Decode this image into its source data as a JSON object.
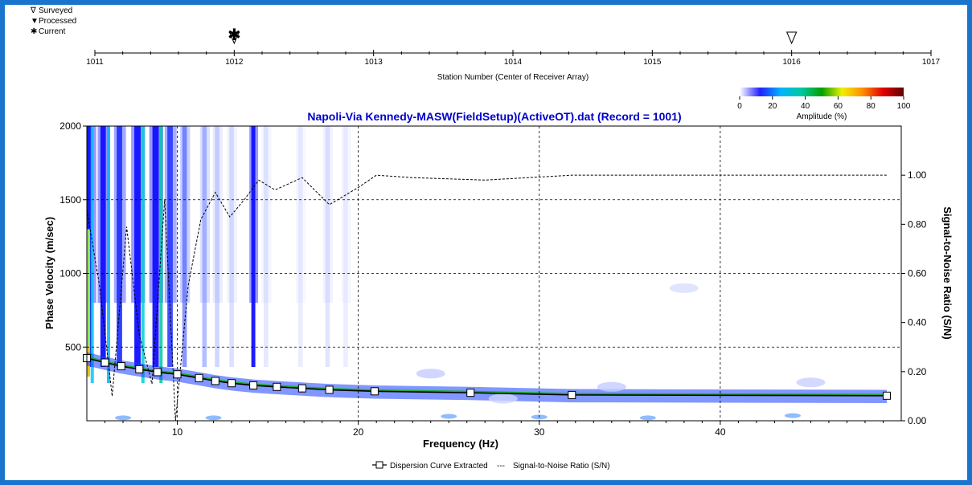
{
  "status_legend": {
    "items": [
      {
        "symbol": "∇",
        "label": "Surveyed"
      },
      {
        "symbol": "▼",
        "label": "Processed"
      },
      {
        "symbol": "✱",
        "label": "Current"
      }
    ]
  },
  "station_axis": {
    "label": "Station Number (Center of Receiver Array)",
    "ticks": [
      "1011",
      "1012",
      "1013",
      "1014",
      "1015",
      "1016",
      "1017"
    ],
    "range": [
      1011,
      1017
    ],
    "surveyed_stations": [
      1012,
      1016
    ],
    "current_station": 1012
  },
  "colorbar": {
    "label": "Amplitude (%)",
    "ticks": [
      "0",
      "20",
      "40",
      "60",
      "80",
      "100"
    ],
    "colors": [
      "#ffffff",
      "#2020ff",
      "#00b4ff",
      "#00c8a0",
      "#00a000",
      "#f0f000",
      "#ff8c00",
      "#e00000",
      "#600000"
    ]
  },
  "chart_data": {
    "type": "line",
    "title": "Napoli-Via Kennedy-MASW(FieldSetup)(ActiveOT).dat (Record = 1001)",
    "xlabel": "Frequency (Hz)",
    "ylabel": "Phase Velocity (m/sec)",
    "y2label": "Signal-to-Noise Ratio (S/N)",
    "xlim": [
      5,
      50
    ],
    "ylim": [
      0,
      2000
    ],
    "y2lim": [
      0,
      1.2
    ],
    "x_ticks": [
      "10",
      "20",
      "30",
      "40"
    ],
    "y_ticks": [
      "500",
      "1000",
      "1500",
      "2000"
    ],
    "y2_ticks": [
      "0.00",
      "0.20",
      "0.40",
      "0.60",
      "0.80",
      "1.00"
    ],
    "grid": true,
    "legend_position": "bottom-center",
    "legend": [
      "Dispersion Curve Extracted",
      "Signal-to-Noise Ratio (S/N)"
    ],
    "series": [
      {
        "name": "Dispersion Curve Extracted",
        "axis": "left",
        "x": [
          5.0,
          6.0,
          6.9,
          7.9,
          8.9,
          10.0,
          11.2,
          12.1,
          13.0,
          14.2,
          15.5,
          16.9,
          18.4,
          20.9,
          26.2,
          31.8,
          49.2
        ],
        "values": [
          425,
          395,
          370,
          350,
          330,
          315,
          290,
          270,
          255,
          240,
          230,
          220,
          210,
          200,
          190,
          175,
          170
        ]
      },
      {
        "name": "Signal-to-Noise Ratio (S/N)",
        "axis": "right",
        "x": [
          5.0,
          5.7,
          6.4,
          7.2,
          7.9,
          8.6,
          9.3,
          9.9,
          10.6,
          11.3,
          12.1,
          12.9,
          13.7,
          14.5,
          15.4,
          16.9,
          18.4,
          20.0,
          21.0,
          23.0,
          27.0,
          31.8,
          40.0,
          49.2
        ],
        "values": [
          0.86,
          0.55,
          0.1,
          0.79,
          0.35,
          0.15,
          0.9,
          0.0,
          0.55,
          0.82,
          0.93,
          0.83,
          0.9,
          0.98,
          0.94,
          0.99,
          0.88,
          0.95,
          1.0,
          0.99,
          0.98,
          1.0,
          1.0,
          1.0
        ]
      }
    ]
  }
}
